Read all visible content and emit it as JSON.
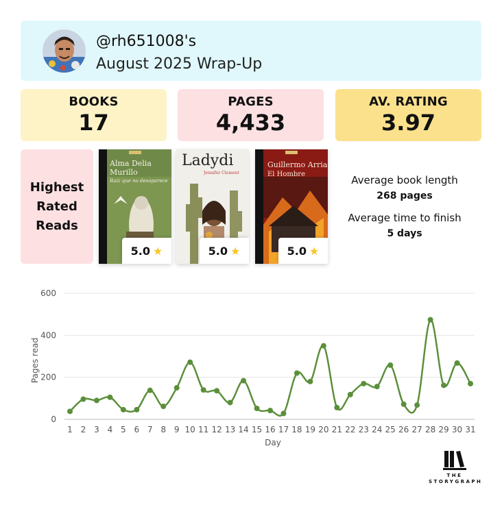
{
  "header": {
    "username": "@rh651008's",
    "subtitle": "August 2025 Wrap-Up"
  },
  "stats": {
    "books": {
      "label": "BOOKS",
      "value": "17"
    },
    "pages": {
      "label": "PAGES",
      "value": "4,433"
    },
    "rating": {
      "label": "AV. RATING",
      "value": "3.97"
    }
  },
  "highest_rated": {
    "label": "Highest Rated Reads",
    "books": [
      {
        "cover_line1": "Alma Delia",
        "cover_line2": "Murillo",
        "cover_line3": "Raíz que no desaparece",
        "rating": "5.0"
      },
      {
        "cover_line1": "Ladydi",
        "cover_line2": "Jennifer Clement",
        "rating": "5.0"
      },
      {
        "cover_line1": "Guillermo Arriaga",
        "cover_line2": "El Hombre",
        "rating": "5.0"
      }
    ]
  },
  "averages": {
    "length_label": "Average book length",
    "length_value": "268 pages",
    "time_label": "Average time to finish",
    "time_value": "5 days"
  },
  "chart_data": {
    "type": "line",
    "title": "",
    "xlabel": "Day",
    "ylabel": "Pages read",
    "ylim": [
      0,
      600
    ],
    "yticks": [
      0,
      200,
      400,
      600
    ],
    "grid": true,
    "x": [
      1,
      2,
      3,
      4,
      5,
      6,
      7,
      8,
      9,
      10,
      11,
      12,
      13,
      14,
      15,
      16,
      17,
      18,
      19,
      20,
      21,
      22,
      23,
      24,
      25,
      26,
      27,
      28,
      29,
      30,
      31
    ],
    "series": [
      {
        "color": "#5b8f3b",
        "values": [
          38,
          96,
          90,
          105,
          46,
          46,
          138,
          62,
          150,
          272,
          140,
          136,
          80,
          184,
          52,
          42,
          28,
          220,
          180,
          350,
          56,
          118,
          170,
          156,
          258,
          72,
          68,
          474,
          162,
          268,
          170
        ]
      }
    ]
  },
  "logo": {
    "line1": "THE",
    "line2": "STORYGRAPH"
  },
  "colors": {
    "header_bg": "#e0f8fc",
    "books_bg": "#fdf3c6",
    "pages_bg": "#fde0e2",
    "rating_bg": "#fbe18c",
    "line": "#5b8f3b",
    "star": "#f8c624"
  }
}
